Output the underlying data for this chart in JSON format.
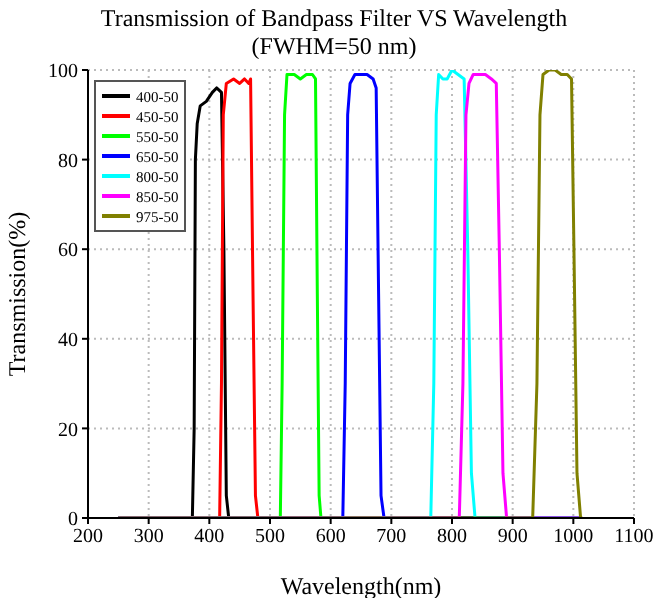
{
  "chart_data": {
    "type": "line",
    "title": "Transmission of Bandpass Filter VS Wavelength",
    "subtitle": "(FWHM=50 nm)",
    "xlabel": "Wavelength(nm)",
    "ylabel": "Transmission(%)",
    "xlim": [
      200,
      1100
    ],
    "xticks": [
      200,
      300,
      400,
      500,
      600,
      700,
      800,
      900,
      1000,
      1100
    ],
    "ylim": [
      0,
      100
    ],
    "yticks": [
      0,
      20,
      40,
      60,
      80,
      100
    ],
    "grid": true,
    "legend": "top left",
    "marker": "none",
    "line_style": "solid",
    "series": [
      {
        "name": "400-50",
        "color": "#000000",
        "x": [
          250,
          372,
          375,
          377,
          380,
          385,
          395,
          405,
          412,
          420,
          424,
          428,
          432,
          1010
        ],
        "values": [
          0,
          0,
          20,
          80,
          88,
          92,
          93,
          95,
          96,
          95,
          60,
          5,
          0,
          0
        ]
      },
      {
        "name": "450-50",
        "color": "#ff0000",
        "x": [
          250,
          417,
          420,
          423,
          428,
          440,
          450,
          458,
          465,
          468,
          472,
          476,
          480,
          1010
        ],
        "values": [
          0,
          0,
          30,
          90,
          97,
          98,
          97,
          98,
          97,
          98,
          50,
          5,
          0,
          0
        ]
      },
      {
        "name": "550-50",
        "color": "#00ff00",
        "x": [
          250,
          517,
          520,
          524,
          528,
          540,
          550,
          560,
          570,
          575,
          578,
          581,
          584,
          1010
        ],
        "values": [
          0,
          0,
          30,
          90,
          99,
          99,
          98,
          99,
          99,
          98,
          50,
          5,
          0,
          0
        ]
      },
      {
        "name": "650-50",
        "color": "#0000ff",
        "x": [
          250,
          620,
          624,
          628,
          632,
          640,
          650,
          660,
          670,
          675,
          679,
          683,
          688,
          1010
        ],
        "values": [
          0,
          0,
          30,
          90,
          97,
          99,
          99,
          99,
          98,
          96,
          50,
          5,
          0,
          0
        ]
      },
      {
        "name": "800-50",
        "color": "#00ffff",
        "x": [
          250,
          765,
          770,
          774,
          778,
          785,
          792,
          800,
          810,
          820,
          826,
          832,
          838,
          1010
        ],
        "values": [
          0,
          0,
          30,
          90,
          99,
          98,
          98,
          100,
          99,
          98,
          60,
          10,
          0,
          0
        ]
      },
      {
        "name": "850-50",
        "color": "#ff00ff",
        "x": [
          250,
          812,
          818,
          823,
          828,
          835,
          845,
          855,
          865,
          873,
          878,
          884,
          890,
          1010
        ],
        "values": [
          0,
          0,
          30,
          90,
          97,
          99,
          99,
          99,
          98,
          97,
          60,
          10,
          0,
          0
        ]
      },
      {
        "name": "975-50",
        "color": "#808000",
        "x": [
          250,
          933,
          940,
          945,
          950,
          960,
          970,
          980,
          990,
          997,
          1001,
          1006,
          1012,
          1015
        ],
        "values": [
          0,
          0,
          30,
          90,
          99,
          100,
          100,
          99,
          99,
          98,
          60,
          10,
          0,
          0
        ]
      }
    ]
  }
}
